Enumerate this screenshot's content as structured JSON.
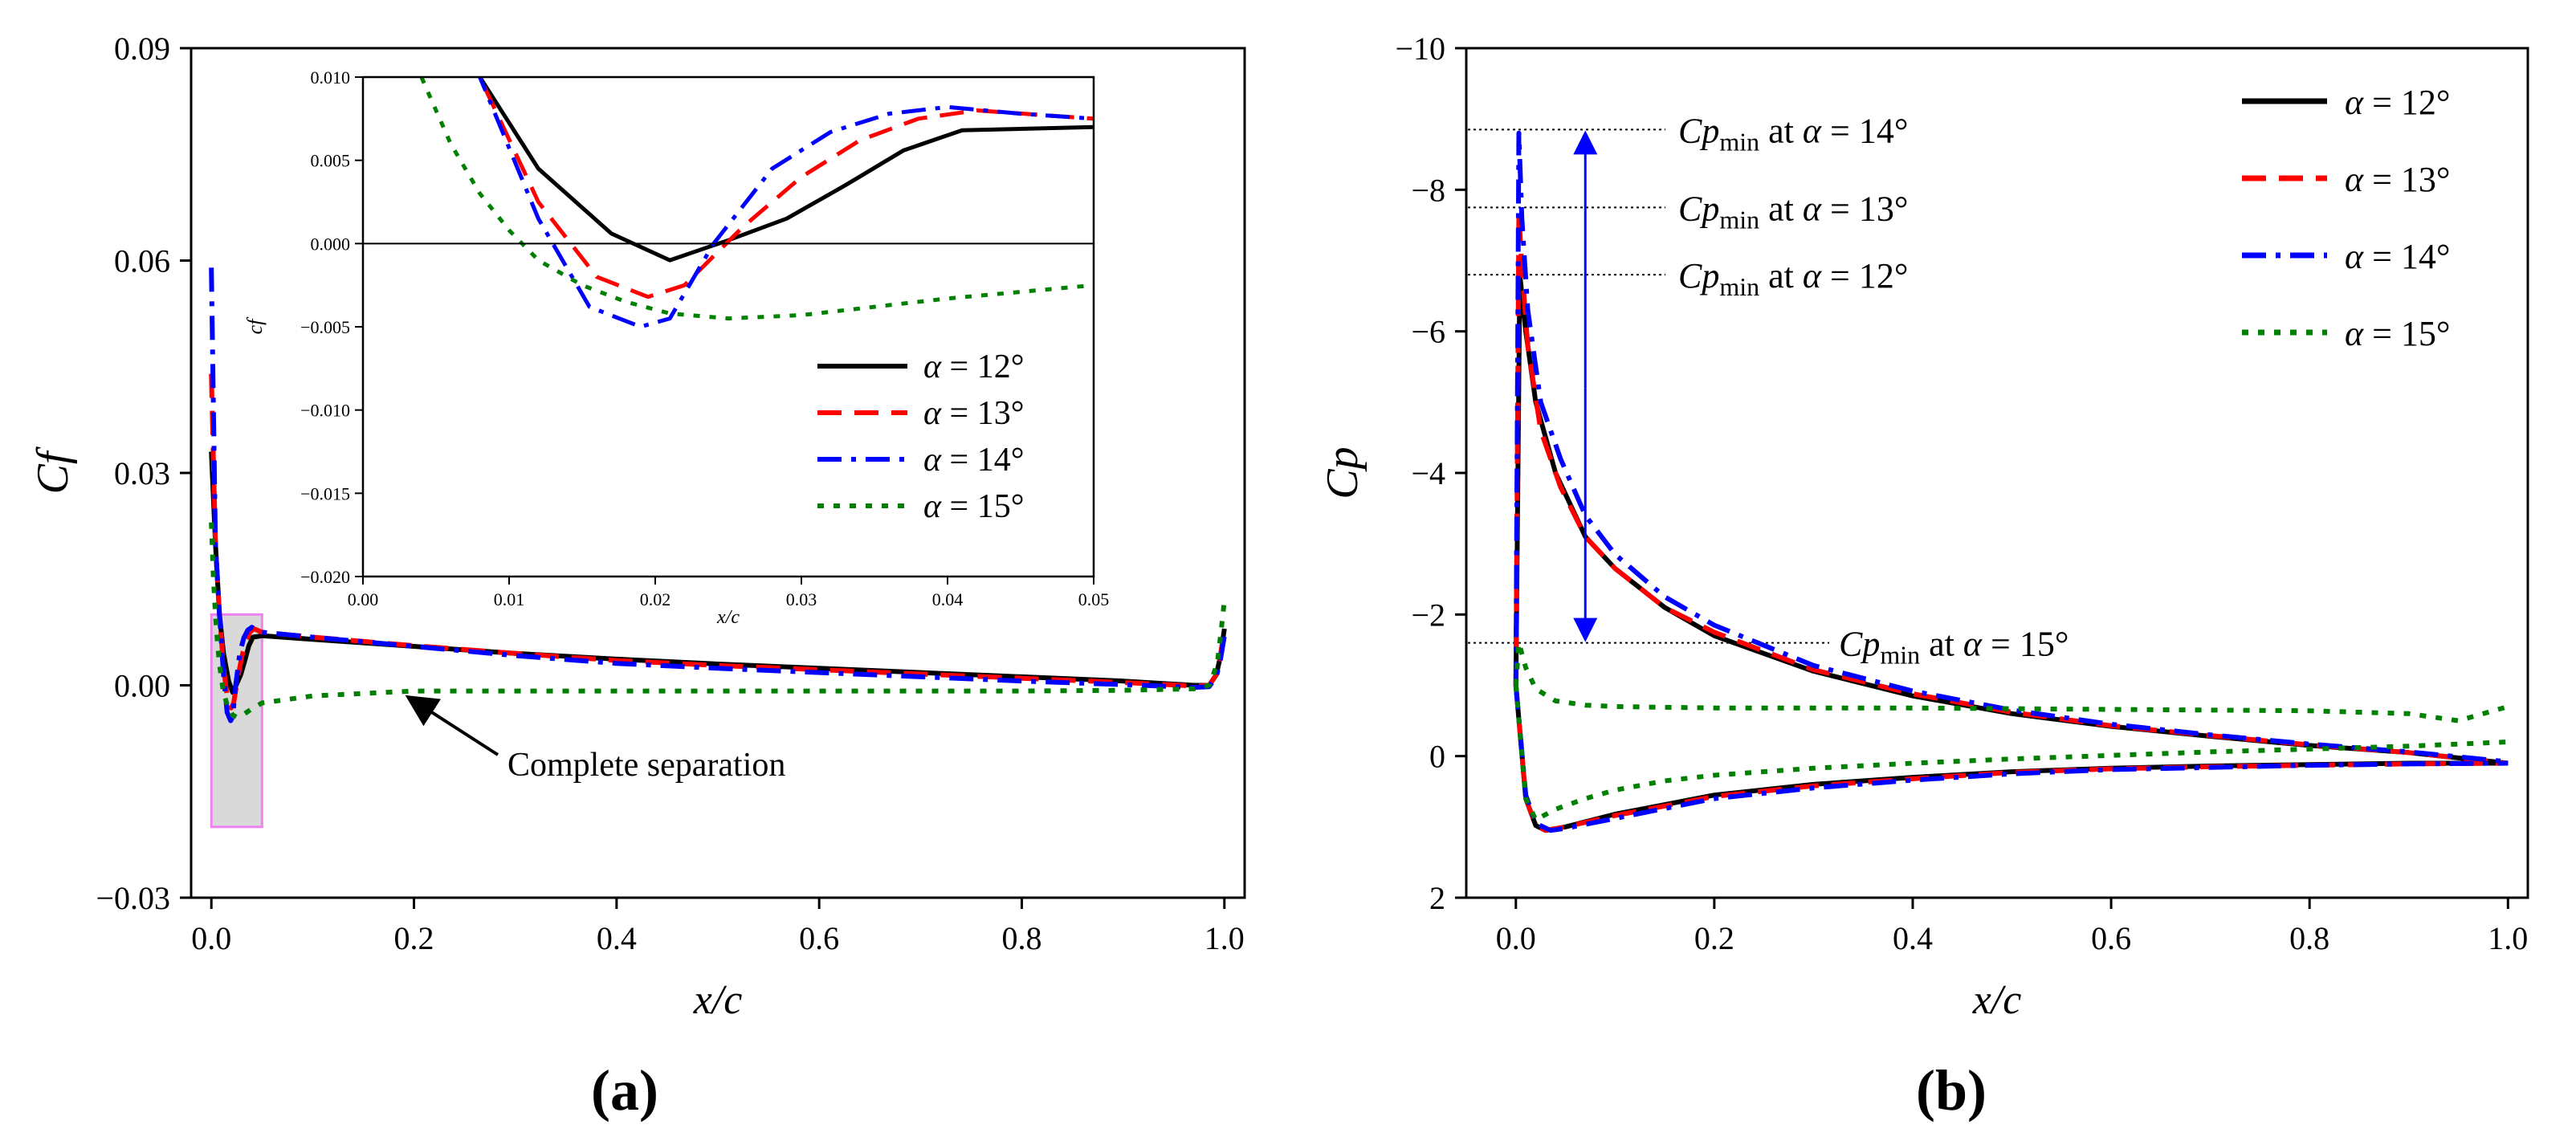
{
  "colors": {
    "a12": "#000000",
    "a13": "#ff0000",
    "a14": "#0000ff",
    "a15": "#008000",
    "box_stroke": "#ee82ee",
    "box_fill": "#d9d9d9",
    "arrow": "#0000ff"
  },
  "labels": {
    "panel_a": "(a)",
    "panel_b": "(b)",
    "annotation_a": "Complete separation"
  },
  "chart_data": [
    {
      "id": "a",
      "type": "line",
      "title": "",
      "xlabel": "x/c",
      "ylabel": "Cf",
      "xlim": [
        -0.02,
        1.02
      ],
      "ylim": [
        -0.03,
        0.09
      ],
      "xticks": [
        "0.0",
        "0.2",
        "0.4",
        "0.6",
        "0.8",
        "1.0"
      ],
      "yticks": [
        "−0.03",
        "0.00",
        "0.03",
        "0.06",
        "0.09"
      ],
      "legend": {
        "location": "inset right",
        "entries": [
          "α = 12°",
          "α = 13°",
          "α = 14°",
          "α = 15°"
        ]
      },
      "series": [
        {
          "name": "α = 12°",
          "x": [
            0,
            0.004,
            0.008,
            0.012,
            0.017,
            0.021,
            0.025,
            0.029,
            0.033,
            0.037,
            0.041,
            0.05,
            0.1,
            0.2,
            0.3,
            0.4,
            0.5,
            0.6,
            0.7,
            0.8,
            0.9,
            0.97,
            0.985,
            0.992,
            0.996,
            1.0
          ],
          "y": [
            0.033,
            0.02,
            0.01,
            0.0045,
            0.0006,
            -0.001,
            0.0002,
            0.0015,
            0.0035,
            0.0056,
            0.0068,
            0.007,
            0.0065,
            0.0055,
            0.0045,
            0.0037,
            0.003,
            0.0024,
            0.0018,
            0.0012,
            0.0006,
            0.0,
            0.0,
            0.0015,
            0.004,
            0.008
          ]
        },
        {
          "name": "α = 13°",
          "x": [
            0,
            0.004,
            0.008,
            0.012,
            0.016,
            0.0195,
            0.022,
            0.026,
            0.03,
            0.034,
            0.038,
            0.042,
            0.05,
            0.1,
            0.2,
            0.3,
            0.4,
            0.5,
            0.6,
            0.7,
            0.8,
            0.9,
            0.97,
            0.985,
            0.992,
            0.996,
            1.0
          ],
          "y": [
            0.044,
            0.02,
            0.01,
            0.0025,
            -0.002,
            -0.0032,
            -0.0025,
            0.001,
            0.004,
            0.0062,
            0.0075,
            0.008,
            0.0075,
            0.0068,
            0.0056,
            0.0045,
            0.0035,
            0.0028,
            0.0022,
            0.0016,
            0.001,
            0.0004,
            -0.0001,
            0.0,
            0.0015,
            0.004,
            0.008
          ]
        },
        {
          "name": "α = 14°",
          "x": [
            0,
            0.004,
            0.008,
            0.012,
            0.0155,
            0.019,
            0.021,
            0.024,
            0.028,
            0.032,
            0.036,
            0.04,
            0.045,
            0.05,
            0.1,
            0.2,
            0.3,
            0.4,
            0.5,
            0.6,
            0.7,
            0.8,
            0.9,
            0.97,
            0.985,
            0.992,
            0.996,
            1.0
          ],
          "y": [
            0.059,
            0.02,
            0.01,
            0.0015,
            -0.0038,
            -0.005,
            -0.0045,
            0.0,
            0.0045,
            0.0067,
            0.0078,
            0.0082,
            0.0078,
            0.0075,
            0.0068,
            0.0055,
            0.0042,
            0.0031,
            0.0024,
            0.0018,
            0.0012,
            0.0006,
            0.0001,
            -0.0003,
            -0.0002,
            0.0012,
            0.0035,
            0.007
          ]
        },
        {
          "name": "α = 15°",
          "x": [
            0,
            0.002,
            0.004,
            0.006,
            0.008,
            0.01,
            0.012,
            0.015,
            0.018,
            0.021,
            0.025,
            0.03,
            0.035,
            0.04,
            0.05,
            0.1,
            0.2,
            0.3,
            0.4,
            0.5,
            0.6,
            0.7,
            0.8,
            0.9,
            0.97,
            0.985,
            0.993,
            0.997,
            1.0
          ],
          "y": [
            0.023,
            0.015,
            0.01,
            0.006,
            0.003,
            0.0008,
            -0.001,
            -0.0025,
            -0.0035,
            -0.0042,
            -0.0045,
            -0.0043,
            -0.0038,
            -0.0033,
            -0.0025,
            -0.0015,
            -0.0008,
            -0.0008,
            -0.0008,
            -0.0008,
            -0.0008,
            -0.0008,
            -0.0008,
            -0.0007,
            -0.0005,
            0.0,
            0.003,
            0.008,
            0.012
          ]
        }
      ],
      "highlight_box": {
        "x": [
          0.0,
          0.05
        ],
        "y": [
          -0.02,
          0.01
        ]
      }
    },
    {
      "id": "a_inset",
      "type": "line",
      "title": "",
      "xlabel": "x/c",
      "ylabel": "cf",
      "xlim": [
        0,
        0.05
      ],
      "ylim": [
        -0.02,
        0.01
      ],
      "xticks": [
        "0.00",
        "0.01",
        "0.02",
        "0.03",
        "0.04",
        "0.05"
      ],
      "yticks": [
        "−0.020",
        "−0.015",
        "−0.010",
        "−0.005",
        "0.000",
        "0.005",
        "0.010"
      ],
      "zero_line": true,
      "legend": {
        "location": "bottom-right",
        "entries": [
          "α = 12°",
          "α = 13°",
          "α = 14°",
          "α = 15°"
        ]
      },
      "series_ref": "same as panel (a), zoomed to x in [0, 0.05]"
    },
    {
      "id": "b",
      "type": "line",
      "title": "",
      "xlabel": "x/c",
      "ylabel": "Cp",
      "xlim": [
        -0.05,
        1.02
      ],
      "ylim": [
        2,
        -10
      ],
      "xticks": [
        "0.0",
        "0.2",
        "0.4",
        "0.6",
        "0.8",
        "1.0"
      ],
      "yticks": [
        "2",
        "0",
        "−2",
        "−4",
        "−6",
        "−8",
        "−10"
      ],
      "legend": {
        "location": "top-right",
        "entries": [
          "α = 12°",
          "α = 13°",
          "α = 14°",
          "α = 15°"
        ]
      },
      "series": [
        {
          "name": "α = 12°",
          "upper": {
            "x": [
              0,
              0.004,
              0.01,
              0.02,
              0.04,
              0.07,
              0.1,
              0.15,
              0.2,
              0.3,
              0.4,
              0.5,
              0.6,
              0.7,
              0.8,
              0.9,
              1.0
            ],
            "y": [
              -1,
              -6.8,
              -6.0,
              -5.0,
              -4.0,
              -3.1,
              -2.65,
              -2.1,
              -1.7,
              -1.2,
              -0.85,
              -0.6,
              -0.42,
              -0.28,
              -0.15,
              -0.05,
              0.1
            ]
          },
          "lower": {
            "x": [
              0,
              0.01,
              0.02,
              0.03,
              0.05,
              0.1,
              0.2,
              0.3,
              0.4,
              0.5,
              0.6,
              0.7,
              0.8,
              0.9,
              1.0
            ],
            "y": [
              -1,
              0.6,
              0.98,
              1.05,
              1.0,
              0.82,
              0.55,
              0.4,
              0.3,
              0.22,
              0.17,
              0.14,
              0.12,
              0.1,
              0.1
            ]
          }
        },
        {
          "name": "α = 13°",
          "upper": {
            "x": [
              0,
              0.003,
              0.006,
              0.012,
              0.025,
              0.045,
              0.07,
              0.1,
              0.15,
              0.2,
              0.3,
              0.4,
              0.5,
              0.6,
              0.7,
              0.8,
              0.9,
              1.0
            ],
            "y": [
              -1,
              -7.7,
              -6.9,
              -5.8,
              -4.6,
              -3.8,
              -3.1,
              -2.65,
              -2.1,
              -1.75,
              -1.22,
              -0.88,
              -0.62,
              -0.43,
              -0.29,
              -0.16,
              -0.05,
              0.1
            ]
          },
          "lower": {
            "x": [
              0,
              0.01,
              0.02,
              0.03,
              0.05,
              0.1,
              0.2,
              0.3,
              0.4,
              0.5,
              0.6,
              0.7,
              0.8,
              0.9,
              1.0
            ],
            "y": [
              -1,
              0.6,
              0.98,
              1.05,
              1.0,
              0.84,
              0.57,
              0.42,
              0.32,
              0.23,
              0.18,
              0.15,
              0.13,
              0.11,
              0.1
            ]
          }
        },
        {
          "name": "α = 14°",
          "upper": {
            "x": [
              0,
              0.003,
              0.006,
              0.012,
              0.025,
              0.045,
              0.07,
              0.1,
              0.15,
              0.2,
              0.3,
              0.4,
              0.5,
              0.6,
              0.7,
              0.8,
              0.9,
              1.0
            ],
            "y": [
              -1,
              -8.8,
              -7.6,
              -6.3,
              -5.0,
              -4.2,
              -3.4,
              -2.85,
              -2.25,
              -1.85,
              -1.28,
              -0.92,
              -0.65,
              -0.45,
              -0.3,
              -0.17,
              -0.06,
              0.08
            ]
          },
          "lower": {
            "x": [
              0,
              0.01,
              0.02,
              0.035,
              0.05,
              0.1,
              0.2,
              0.3,
              0.4,
              0.5,
              0.6,
              0.7,
              0.8,
              0.9,
              1.0
            ],
            "y": [
              -1,
              0.55,
              0.95,
              1.05,
              1.02,
              0.88,
              0.6,
              0.45,
              0.34,
              0.25,
              0.19,
              0.16,
              0.13,
              0.11,
              0.1
            ]
          }
        },
        {
          "name": "α = 15°",
          "upper": {
            "x": [
              0,
              0.003,
              0.01,
              0.02,
              0.04,
              0.07,
              0.1,
              0.2,
              0.4,
              0.6,
              0.8,
              0.9,
              0.95,
              1.0
            ],
            "y": [
              -1,
              -1.6,
              -1.25,
              -0.95,
              -0.78,
              -0.72,
              -0.7,
              -0.68,
              -0.68,
              -0.66,
              -0.64,
              -0.6,
              -0.5,
              -0.7
            ]
          },
          "lower": {
            "x": [
              0,
              0.01,
              0.02,
              0.04,
              0.07,
              0.1,
              0.15,
              0.2,
              0.3,
              0.4,
              0.5,
              0.6,
              0.7,
              0.8,
              0.9,
              1.0
            ],
            "y": [
              -1,
              0.6,
              0.9,
              0.75,
              0.6,
              0.48,
              0.35,
              0.27,
              0.17,
              0.1,
              0.04,
              -0.01,
              -0.06,
              -0.1,
              -0.14,
              -0.2
            ]
          }
        }
      ],
      "annotations": [
        {
          "text_main": "Cp",
          "text_sub": "min",
          "text_tail": "at α = 14°",
          "level": -8.85
        },
        {
          "text_main": "Cp",
          "text_sub": "min",
          "text_tail": "at α = 13°",
          "level": -7.75
        },
        {
          "text_main": "Cp",
          "text_sub": "min",
          "text_tail": "at α = 12°",
          "level": -6.8
        },
        {
          "text_main": "Cp",
          "text_sub": "min",
          "text_tail": "at α = 15°",
          "level": -1.6
        }
      ]
    }
  ]
}
